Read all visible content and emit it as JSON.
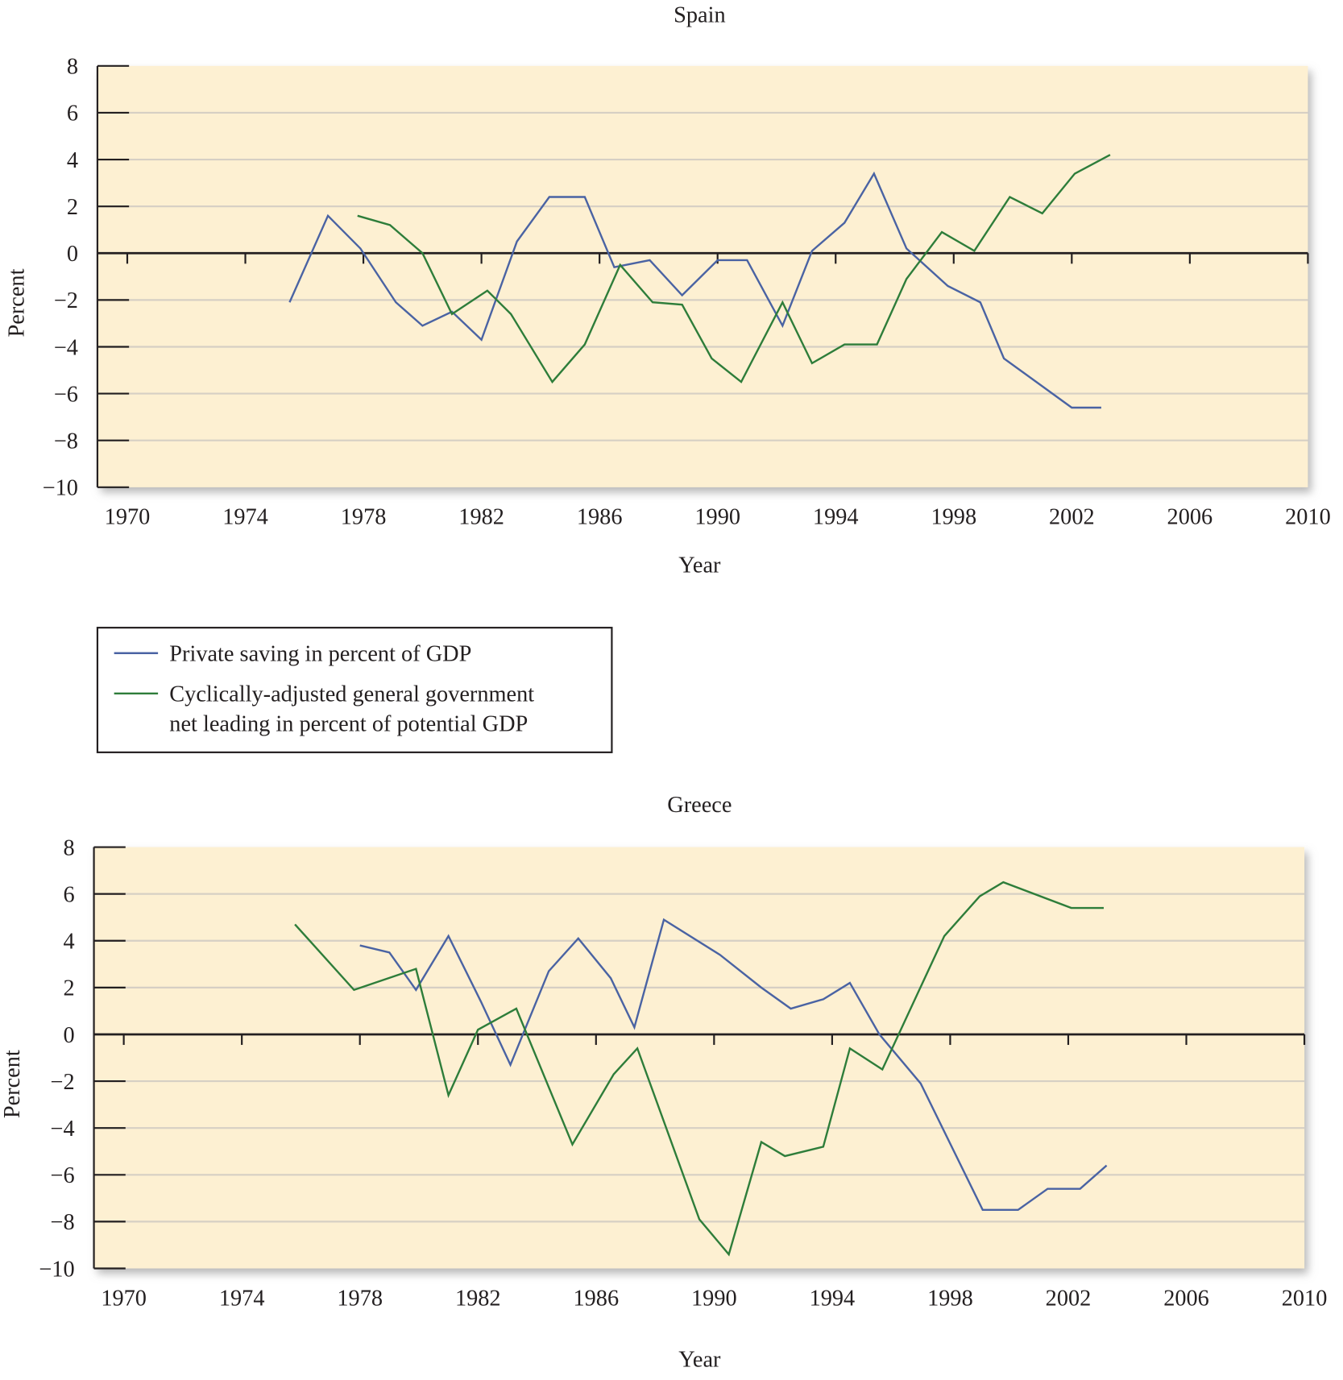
{
  "legend": {
    "items": [
      {
        "label_lines": [
          "Private saving in percent of GDP"
        ],
        "color": "#4a63a3"
      },
      {
        "label_lines": [
          "Cyclically-adjusted general government",
          "net leading in percent of potential GDP"
        ],
        "color": "#2e7d3a"
      }
    ]
  },
  "chart_data": [
    {
      "type": "line",
      "title": "Spain",
      "xlabel": "Year",
      "ylabel": "Percent",
      "xlim": [
        1970,
        2010
      ],
      "ylim": [
        -10,
        8
      ],
      "xticks": [
        "1970",
        "1974",
        "1978",
        "1982",
        "1986",
        "1990",
        "1994",
        "1998",
        "2002",
        "2006",
        "2010"
      ],
      "yticks": [
        "8",
        "6",
        "4",
        "2",
        "0",
        "−2",
        "−4",
        "−6",
        "−8",
        "−10"
      ],
      "ytick_values": [
        8,
        6,
        4,
        2,
        0,
        -2,
        -4,
        -6,
        -8,
        -10
      ],
      "grid": true,
      "series": [
        {
          "name": "Private saving in percent of GDP",
          "color": "#4a63a3",
          "x": [
            1975.5,
            1976.8,
            1977.9,
            1979.1,
            1980,
            1981,
            1982,
            1983.2,
            1984.3,
            1985.5,
            1986.5,
            1987.7,
            1988.8,
            1990,
            1991,
            1992.2,
            1993.2,
            1994.3,
            1995.3,
            1996.4,
            1997.8,
            1998.9,
            1999.7,
            2002,
            2003
          ],
          "y": [
            -2.1,
            1.6,
            0.2,
            -2.1,
            -3.1,
            -2.5,
            -3.7,
            0.5,
            2.4,
            2.4,
            -0.6,
            -0.3,
            -1.8,
            -0.3,
            -0.3,
            -3.1,
            0.1,
            1.3,
            3.4,
            0.2,
            -1.4,
            -2.1,
            -4.5,
            -6.6,
            -6.6
          ]
        },
        {
          "name": "Cyclically-adjusted general government net leading in percent of potential GDP",
          "color": "#2e7d3a",
          "x": [
            1977.8,
            1978.9,
            1980,
            1981,
            1982.2,
            1983,
            1984.4,
            1985.5,
            1986.7,
            1987.8,
            1988.8,
            1989.8,
            1990.8,
            1992.2,
            1993.2,
            1994.3,
            1995.4,
            1996.4,
            1997.6,
            1998.7,
            1999.9,
            2001,
            2002.1,
            2003.3
          ],
          "y": [
            1.6,
            1.2,
            0,
            -2.6,
            -1.6,
            -2.6,
            -5.5,
            -3.9,
            -0.5,
            -2.1,
            -2.2,
            -4.5,
            -5.5,
            -2.1,
            -4.7,
            -3.9,
            -3.9,
            -1.1,
            0.9,
            0.1,
            2.4,
            1.7,
            3.4,
            4.2
          ]
        }
      ]
    },
    {
      "type": "line",
      "title": "Greece",
      "xlabel": "Year",
      "ylabel": "Percent",
      "xlim": [
        1970,
        2010
      ],
      "ylim": [
        -10,
        8
      ],
      "xticks": [
        "1970",
        "1974",
        "1978",
        "1982",
        "1986",
        "1990",
        "1994",
        "1998",
        "2002",
        "2006",
        "2010"
      ],
      "yticks": [
        "8",
        "6",
        "4",
        "2",
        "0",
        "−2",
        "−4",
        "−6",
        "−8",
        "−10"
      ],
      "ytick_values": [
        8,
        6,
        4,
        2,
        0,
        -2,
        -4,
        -6,
        -8,
        -10
      ],
      "grid": true,
      "series": [
        {
          "name": "Private saving in percent of GDP",
          "color": "#4a63a3",
          "x": [
            1978,
            1979,
            1979.9,
            1981,
            1982.1,
            1983.1,
            1984.4,
            1985.4,
            1986.5,
            1987.3,
            1988.3,
            1990.2,
            1991.6,
            1992.6,
            1993.7,
            1994.6,
            1995.6,
            1997,
            1999.1,
            2000.3,
            2001.3,
            2002.4,
            2003.3
          ],
          "y": [
            3.8,
            3.5,
            1.9,
            4.2,
            1.4,
            -1.3,
            2.7,
            4.1,
            2.4,
            0.3,
            4.9,
            3.4,
            2.0,
            1.1,
            1.5,
            2.2,
            0,
            -2.1,
            -7.5,
            -7.5,
            -6.6,
            -6.6,
            -5.6
          ]
        },
        {
          "name": "Cyclically-adjusted general government net leading in percent of potential GDP",
          "color": "#2e7d3a",
          "x": [
            1975.8,
            1977.8,
            1979.9,
            1981,
            1982,
            1983.3,
            1985.2,
            1986.6,
            1987.4,
            1989.5,
            1990.5,
            1991.6,
            1992.4,
            1993.7,
            1994.6,
            1995.7,
            1997.8,
            1999,
            1999.8,
            2002.1,
            2003.2
          ],
          "y": [
            4.7,
            1.9,
            2.8,
            -2.6,
            0.2,
            1.1,
            -4.7,
            -1.7,
            -0.6,
            -7.9,
            -9.4,
            -4.6,
            -5.2,
            -4.8,
            -0.6,
            -1.5,
            4.2,
            5.9,
            6.5,
            5.4,
            5.4
          ]
        }
      ]
    }
  ]
}
